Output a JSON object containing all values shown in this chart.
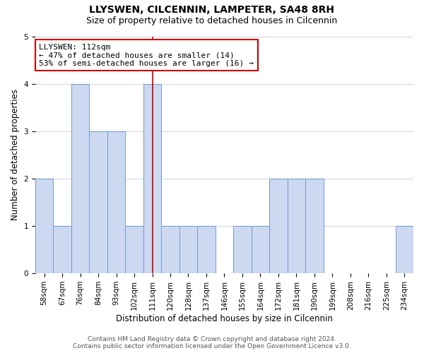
{
  "title": "LLYSWEN, CILCENNIN, LAMPETER, SA48 8RH",
  "subtitle": "Size of property relative to detached houses in Cilcennin",
  "xlabel": "Distribution of detached houses by size in Cilcennin",
  "ylabel": "Number of detached properties",
  "categories": [
    "58sqm",
    "67sqm",
    "76sqm",
    "84sqm",
    "93sqm",
    "102sqm",
    "111sqm",
    "120sqm",
    "128sqm",
    "137sqm",
    "146sqm",
    "155sqm",
    "164sqm",
    "172sqm",
    "181sqm",
    "190sqm",
    "199sqm",
    "208sqm",
    "216sqm",
    "225sqm",
    "234sqm"
  ],
  "values": [
    2,
    1,
    4,
    3,
    3,
    1,
    4,
    1,
    1,
    1,
    0,
    1,
    1,
    2,
    2,
    2,
    0,
    0,
    0,
    0,
    1
  ],
  "bar_color": "#ccd9f0",
  "bar_edgecolor": "#7399cc",
  "vline_index": 6,
  "vline_color": "#cc0000",
  "annotation_title": "LLYSWEN: 112sqm",
  "annotation_line1": "← 47% of detached houses are smaller (14)",
  "annotation_line2": "53% of semi-detached houses are larger (16) →",
  "annotation_box_edgecolor": "#cc0000",
  "ylim": [
    0,
    5
  ],
  "yticks": [
    0,
    1,
    2,
    3,
    4,
    5
  ],
  "footer_line1": "Contains HM Land Registry data © Crown copyright and database right 2024.",
  "footer_line2": "Contains public sector information licensed under the Open Government Licence v3.0.",
  "background_color": "#ffffff",
  "plot_bg_color": "#ffffff",
  "grid_color": "#d0d8e8",
  "title_fontsize": 10,
  "subtitle_fontsize": 9,
  "axis_label_fontsize": 8.5,
  "tick_fontsize": 7.5,
  "annotation_fontsize": 8,
  "footer_fontsize": 6.5
}
